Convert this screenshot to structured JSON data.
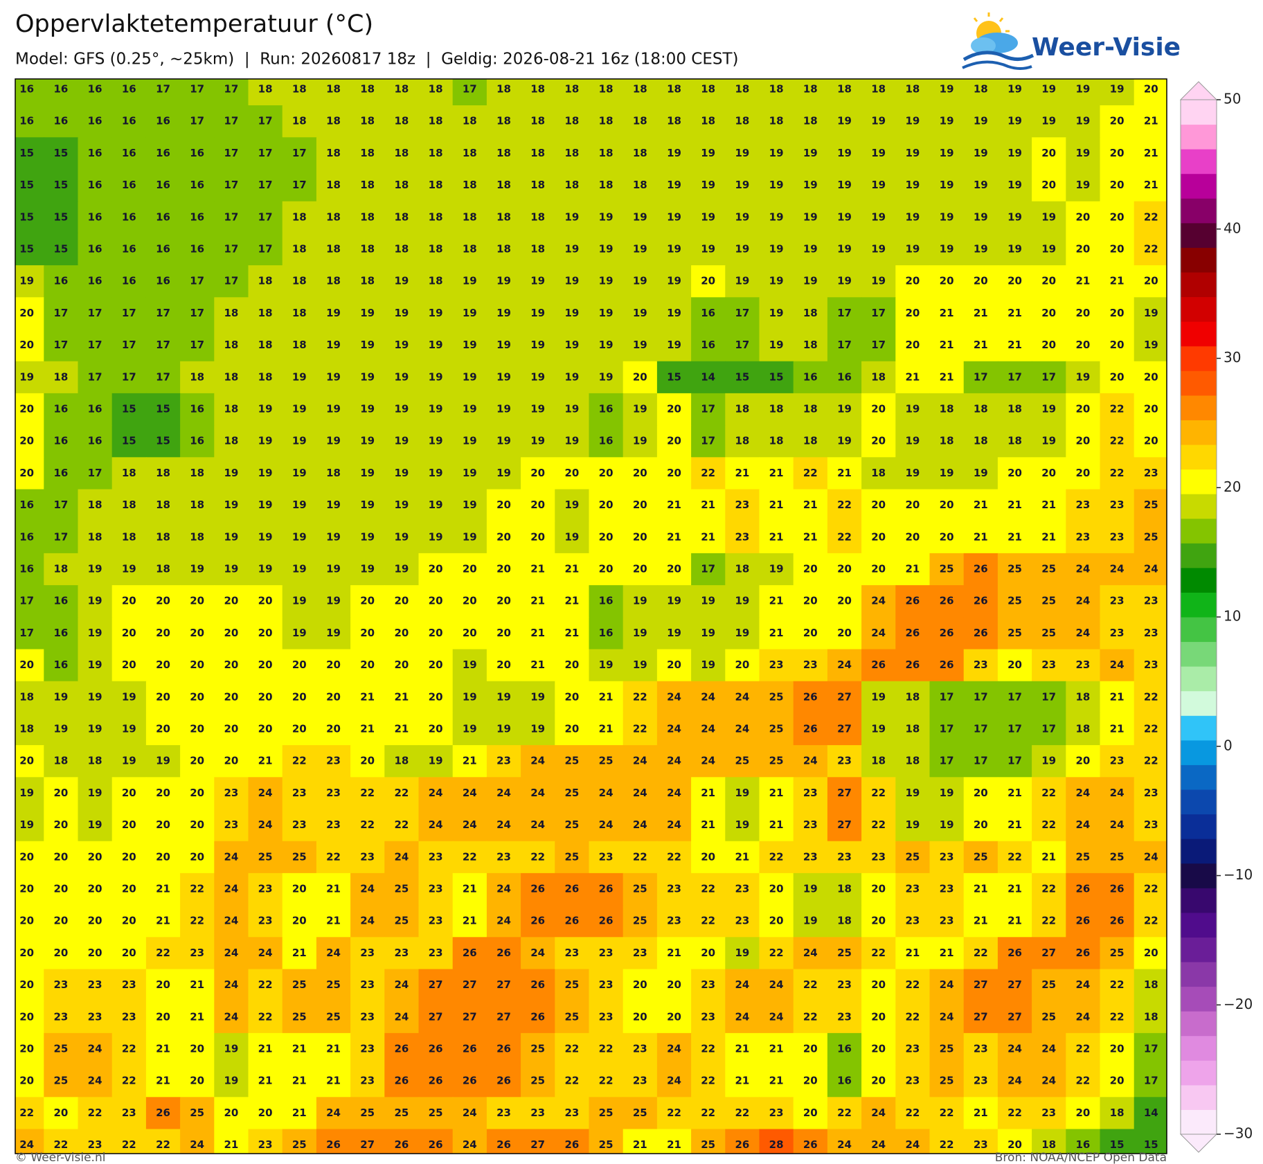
{
  "header": {
    "title": "Oppervlaktetemperatuur (°C)",
    "subtitle": "Model: GFS (0.25°, ~25km)  |  Run: 20260817 18z  |  Geldig: 2026-08-21 16z (18:00 CEST)",
    "logo": "Weer-Visie"
  },
  "grid": {
    "rows": [
      [
        16,
        16,
        16,
        16,
        17,
        17,
        17,
        18,
        18,
        18,
        18,
        18,
        18,
        17,
        18,
        18,
        18,
        18,
        18,
        18,
        18,
        18,
        18,
        18,
        18,
        18,
        18,
        19,
        18,
        19,
        19,
        19,
        19,
        20
      ],
      [
        16,
        16,
        16,
        16,
        16,
        17,
        17,
        17,
        18,
        18,
        18,
        18,
        18,
        18,
        18,
        18,
        18,
        18,
        18,
        18,
        18,
        18,
        18,
        18,
        19,
        19,
        19,
        19,
        19,
        19,
        19,
        19,
        20,
        21
      ],
      [
        15,
        15,
        16,
        16,
        16,
        16,
        17,
        17,
        17,
        18,
        18,
        18,
        18,
        18,
        18,
        18,
        18,
        18,
        18,
        19,
        19,
        19,
        19,
        19,
        19,
        19,
        19,
        19,
        19,
        19,
        20,
        19,
        20,
        21
      ],
      [
        15,
        15,
        16,
        16,
        16,
        16,
        17,
        17,
        17,
        18,
        18,
        18,
        18,
        18,
        18,
        18,
        18,
        18,
        18,
        19,
        19,
        19,
        19,
        19,
        19,
        19,
        19,
        19,
        19,
        19,
        20,
        19,
        20,
        21
      ],
      [
        15,
        15,
        16,
        16,
        16,
        16,
        17,
        17,
        18,
        18,
        18,
        18,
        18,
        18,
        18,
        18,
        19,
        19,
        19,
        19,
        19,
        19,
        19,
        19,
        19,
        19,
        19,
        19,
        19,
        19,
        19,
        20,
        20,
        22
      ],
      [
        15,
        15,
        16,
        16,
        16,
        16,
        17,
        17,
        18,
        18,
        18,
        18,
        18,
        18,
        18,
        18,
        19,
        19,
        19,
        19,
        19,
        19,
        19,
        19,
        19,
        19,
        19,
        19,
        19,
        19,
        19,
        20,
        20,
        22
      ],
      [
        19,
        16,
        16,
        16,
        16,
        17,
        17,
        18,
        18,
        18,
        18,
        19,
        18,
        19,
        19,
        19,
        19,
        19,
        19,
        19,
        20,
        19,
        19,
        19,
        19,
        19,
        20,
        20,
        20,
        20,
        20,
        21,
        21,
        20
      ],
      [
        20,
        17,
        17,
        17,
        17,
        17,
        18,
        18,
        18,
        19,
        19,
        19,
        19,
        19,
        19,
        19,
        19,
        19,
        19,
        19,
        16,
        17,
        19,
        18,
        17,
        17,
        20,
        21,
        21,
        21,
        20,
        20,
        20,
        19
      ],
      [
        20,
        17,
        17,
        17,
        17,
        17,
        18,
        18,
        18,
        19,
        19,
        19,
        19,
        19,
        19,
        19,
        19,
        19,
        19,
        19,
        16,
        17,
        19,
        18,
        17,
        17,
        20,
        21,
        21,
        21,
        20,
        20,
        20,
        19
      ],
      [
        19,
        18,
        17,
        17,
        17,
        18,
        18,
        18,
        19,
        19,
        19,
        19,
        19,
        19,
        19,
        19,
        19,
        19,
        20,
        15,
        14,
        15,
        15,
        16,
        16,
        18,
        21,
        21,
        17,
        17,
        17,
        19,
        20,
        20
      ],
      [
        20,
        16,
        16,
        15,
        15,
        16,
        18,
        19,
        19,
        19,
        19,
        19,
        19,
        19,
        19,
        19,
        19,
        16,
        19,
        20,
        17,
        18,
        18,
        18,
        19,
        20,
        19,
        18,
        18,
        18,
        19,
        20,
        22,
        20
      ],
      [
        20,
        16,
        16,
        15,
        15,
        16,
        18,
        19,
        19,
        19,
        19,
        19,
        19,
        19,
        19,
        19,
        19,
        16,
        19,
        20,
        17,
        18,
        18,
        18,
        19,
        20,
        19,
        18,
        18,
        18,
        19,
        20,
        22,
        20
      ],
      [
        20,
        16,
        17,
        18,
        18,
        18,
        19,
        19,
        19,
        18,
        19,
        19,
        19,
        19,
        19,
        20,
        20,
        20,
        20,
        20,
        22,
        21,
        21,
        22,
        21,
        18,
        19,
        19,
        19,
        20,
        20,
        20,
        22,
        23
      ],
      [
        16,
        17,
        18,
        18,
        18,
        18,
        19,
        19,
        19,
        19,
        19,
        19,
        19,
        19,
        20,
        20,
        19,
        20,
        20,
        21,
        21,
        23,
        21,
        21,
        22,
        20,
        20,
        20,
        21,
        21,
        21,
        23,
        23,
        25
      ],
      [
        16,
        17,
        18,
        18,
        18,
        18,
        19,
        19,
        19,
        19,
        19,
        19,
        19,
        19,
        20,
        20,
        19,
        20,
        20,
        21,
        21,
        23,
        21,
        21,
        22,
        20,
        20,
        20,
        21,
        21,
        21,
        23,
        23,
        25
      ],
      [
        16,
        18,
        19,
        19,
        18,
        19,
        19,
        19,
        19,
        19,
        19,
        19,
        20,
        20,
        20,
        21,
        21,
        20,
        20,
        20,
        17,
        18,
        19,
        20,
        20,
        20,
        21,
        25,
        26,
        25,
        25,
        24,
        24,
        24
      ],
      [
        17,
        16,
        19,
        20,
        20,
        20,
        20,
        20,
        19,
        19,
        20,
        20,
        20,
        20,
        20,
        21,
        21,
        16,
        19,
        19,
        19,
        19,
        21,
        20,
        20,
        24,
        26,
        26,
        26,
        25,
        25,
        24,
        23,
        23
      ],
      [
        17,
        16,
        19,
        20,
        20,
        20,
        20,
        20,
        19,
        19,
        20,
        20,
        20,
        20,
        20,
        21,
        21,
        16,
        19,
        19,
        19,
        19,
        21,
        20,
        20,
        24,
        26,
        26,
        26,
        25,
        25,
        24,
        23,
        23
      ],
      [
        20,
        16,
        19,
        20,
        20,
        20,
        20,
        20,
        20,
        20,
        20,
        20,
        20,
        19,
        20,
        21,
        20,
        19,
        19,
        20,
        19,
        20,
        23,
        23,
        24,
        26,
        26,
        26,
        23,
        20,
        23,
        23,
        24,
        23
      ],
      [
        18,
        19,
        19,
        19,
        20,
        20,
        20,
        20,
        20,
        20,
        21,
        21,
        20,
        19,
        19,
        19,
        20,
        21,
        22,
        24,
        24,
        24,
        25,
        26,
        27,
        19,
        18,
        17,
        17,
        17,
        17,
        18,
        21,
        22
      ],
      [
        18,
        19,
        19,
        19,
        20,
        20,
        20,
        20,
        20,
        20,
        21,
        21,
        20,
        19,
        19,
        19,
        20,
        21,
        22,
        24,
        24,
        24,
        25,
        26,
        27,
        19,
        18,
        17,
        17,
        17,
        17,
        18,
        21,
        22
      ],
      [
        20,
        18,
        18,
        19,
        19,
        20,
        20,
        21,
        22,
        23,
        20,
        18,
        19,
        21,
        23,
        24,
        25,
        25,
        24,
        24,
        24,
        25,
        25,
        24,
        23,
        18,
        18,
        17,
        17,
        17,
        19,
        20,
        23,
        22
      ],
      [
        19,
        20,
        19,
        20,
        20,
        20,
        23,
        24,
        23,
        23,
        22,
        22,
        24,
        24,
        24,
        24,
        25,
        24,
        24,
        24,
        21,
        19,
        21,
        23,
        27,
        22,
        19,
        19,
        20,
        21,
        22,
        24,
        24,
        23
      ],
      [
        19,
        20,
        19,
        20,
        20,
        20,
        23,
        24,
        23,
        23,
        22,
        22,
        24,
        24,
        24,
        24,
        25,
        24,
        24,
        24,
        21,
        19,
        21,
        23,
        27,
        22,
        19,
        19,
        20,
        21,
        22,
        24,
        24,
        23
      ],
      [
        20,
        20,
        20,
        20,
        20,
        20,
        24,
        25,
        25,
        22,
        23,
        24,
        23,
        22,
        23,
        22,
        25,
        23,
        22,
        22,
        20,
        21,
        22,
        23,
        23,
        23,
        25,
        23,
        25,
        22,
        21,
        25,
        25,
        24
      ],
      [
        20,
        20,
        20,
        20,
        21,
        22,
        24,
        23,
        20,
        21,
        24,
        25,
        23,
        21,
        24,
        26,
        26,
        26,
        25,
        23,
        22,
        23,
        20,
        19,
        18,
        20,
        23,
        23,
        21,
        21,
        22,
        26,
        26,
        22
      ],
      [
        20,
        20,
        20,
        20,
        21,
        22,
        24,
        23,
        20,
        21,
        24,
        25,
        23,
        21,
        24,
        26,
        26,
        26,
        25,
        23,
        22,
        23,
        20,
        19,
        18,
        20,
        23,
        23,
        21,
        21,
        22,
        26,
        26,
        22
      ],
      [
        20,
        20,
        20,
        20,
        22,
        23,
        24,
        24,
        21,
        24,
        23,
        23,
        23,
        26,
        26,
        24,
        23,
        23,
        23,
        21,
        20,
        19,
        22,
        24,
        25,
        22,
        21,
        21,
        22,
        26,
        27,
        26,
        25,
        20
      ],
      [
        20,
        23,
        23,
        23,
        20,
        21,
        24,
        22,
        25,
        25,
        23,
        24,
        27,
        27,
        27,
        26,
        25,
        23,
        20,
        20,
        23,
        24,
        24,
        22,
        23,
        20,
        22,
        24,
        27,
        27,
        25,
        24,
        22,
        18
      ],
      [
        20,
        23,
        23,
        23,
        20,
        21,
        24,
        22,
        25,
        25,
        23,
        24,
        27,
        27,
        27,
        26,
        25,
        23,
        20,
        20,
        23,
        24,
        24,
        22,
        23,
        20,
        22,
        24,
        27,
        27,
        25,
        24,
        22,
        18
      ],
      [
        20,
        25,
        24,
        22,
        21,
        20,
        19,
        21,
        21,
        21,
        23,
        26,
        26,
        26,
        26,
        25,
        22,
        22,
        23,
        24,
        22,
        21,
        21,
        20,
        16,
        20,
        23,
        25,
        23,
        24,
        24,
        22,
        20,
        17
      ],
      [
        20,
        25,
        24,
        22,
        21,
        20,
        19,
        21,
        21,
        21,
        23,
        26,
        26,
        26,
        26,
        25,
        22,
        22,
        23,
        24,
        22,
        21,
        21,
        20,
        16,
        20,
        23,
        25,
        23,
        24,
        24,
        22,
        20,
        17
      ],
      [
        22,
        20,
        22,
        23,
        26,
        25,
        20,
        20,
        21,
        24,
        25,
        25,
        25,
        24,
        23,
        23,
        23,
        25,
        25,
        22,
        22,
        22,
        23,
        20,
        22,
        24,
        22,
        22,
        21,
        22,
        23,
        20,
        18,
        14
      ],
      [
        24,
        22,
        23,
        22,
        22,
        24,
        21,
        23,
        25,
        26,
        27,
        26,
        26,
        24,
        26,
        27,
        26,
        25,
        21,
        21,
        25,
        26,
        28,
        26,
        24,
        24,
        24,
        22,
        23,
        20,
        18,
        16,
        15,
        15
      ]
    ]
  },
  "colorbar": {
    "lim": [
      -30,
      50
    ],
    "ticks": [
      50,
      40,
      30,
      20,
      10,
      0,
      {
        "value": -10,
        "label": "−10"
      },
      {
        "value": -20,
        "label": "−20"
      },
      {
        "value": -30,
        "label": "−30"
      }
    ],
    "colors": [
      "#fbeafb",
      "#f8c8f2",
      "#eea4ea",
      "#e08ae0",
      "#c86ccc",
      "#a64cb8",
      "#8a38a8",
      "#6a1e98",
      "#500c8c",
      "#38086e",
      "#180a48",
      "#0a1a78",
      "#0a2e98",
      "#0c48ae",
      "#0a68c4",
      "#0898e0",
      "#30c4f8",
      "#d2fadc",
      "#aaeca8",
      "#78d878",
      "#44c444",
      "#10b418",
      "#008a00",
      "#40a410",
      "#84c400",
      "#c8da00",
      "#ffff00",
      "#ffd800",
      "#ffb400",
      "#ff8800",
      "#ff5a00",
      "#ff3a00",
      "#f00000",
      "#d20000",
      "#b00000",
      "#880000",
      "#560030",
      "#880068",
      "#b8009a",
      "#e840c8",
      "#ff98d8",
      "#ffd4f2"
    ]
  },
  "footer": {
    "left": "© Weer-visie.nl",
    "right": "Bron: NOAA/NCEP Open Data"
  }
}
